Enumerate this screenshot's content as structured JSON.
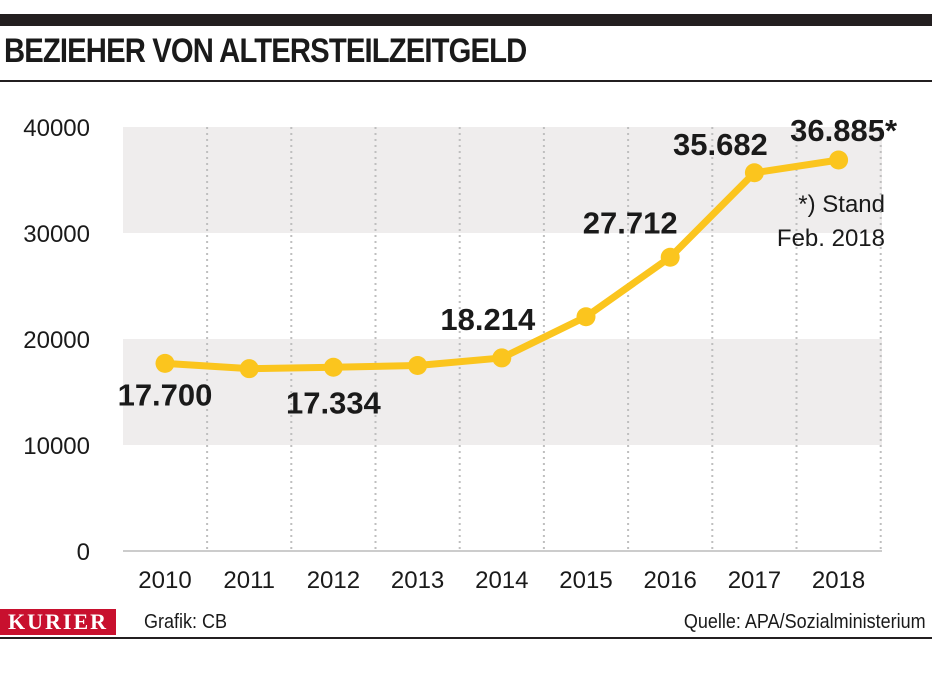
{
  "header": {
    "title": "BEZIEHER VON ALTERSTEILZEITGELD"
  },
  "footer": {
    "logo": "KURIER",
    "credit": "Grafik:  CB",
    "source": "Quelle: APA/Sozialministerium"
  },
  "colors": {
    "line": "#fbc51e",
    "band": "#efeded",
    "grid": "#bfbfbf",
    "logo": "#c8102e"
  },
  "chart_data": {
    "type": "line",
    "title": "BEZIEHER VON ALTERSTEILZEITGELD",
    "x": [
      "2010",
      "2011",
      "2012",
      "2013",
      "2014",
      "2015",
      "2016",
      "2017",
      "2018"
    ],
    "series": [
      {
        "values": [
          17700,
          17200,
          17334,
          17500,
          18214,
          22100,
          27712,
          35682,
          36885
        ]
      }
    ],
    "ylim": [
      0,
      40000
    ],
    "yticks": [
      "0",
      "10000",
      "20000",
      "30000",
      "40000"
    ],
    "data_labels": [
      {
        "index": 0,
        "text": "17.700"
      },
      {
        "index": 2,
        "text": "17.334"
      },
      {
        "index": 4,
        "text": "18.214"
      },
      {
        "index": 6,
        "text": "27.712"
      },
      {
        "index": 7,
        "text": "35.682"
      },
      {
        "index": 8,
        "text": "36.885*"
      }
    ],
    "annotation": [
      "*) Stand",
      "Feb. 2018"
    ],
    "grid": "vertical dotted",
    "legend": "none"
  }
}
